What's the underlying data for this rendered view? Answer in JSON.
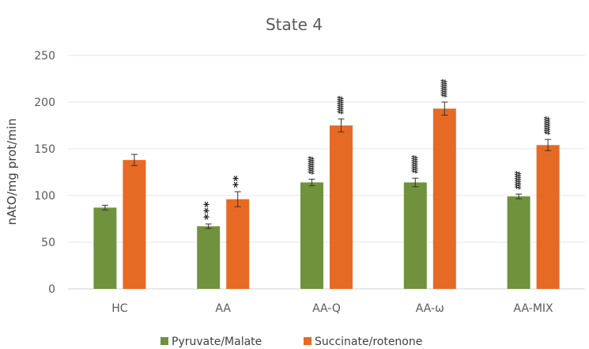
{
  "chart_data": {
    "type": "bar",
    "title": "State 4",
    "xlabel": "",
    "ylabel": "nAtO/mg prot/min",
    "ylim": [
      0,
      250
    ],
    "yticks": [
      "0",
      "50",
      "100",
      "150",
      "200",
      "250"
    ],
    "categories": [
      "HC",
      "AA",
      "AA-Q",
      "AA-ω",
      "AA-MIX"
    ],
    "grid": true,
    "legend": "bottom",
    "series": [
      {
        "name": "Pyruvate/Malate",
        "color": "#70923c",
        "values": [
          87,
          67,
          114,
          114,
          99
        ],
        "errors": [
          2.5,
          2.5,
          3.5,
          4.5,
          2.5
        ],
        "annotations": [
          "",
          "***",
          "####",
          "####",
          "####"
        ]
      },
      {
        "name": "Succinate/rotenone",
        "color": "#e76a24",
        "values": [
          138,
          96,
          175,
          193,
          154
        ],
        "errors": [
          6,
          8,
          7,
          7,
          6
        ],
        "annotations": [
          "",
          "**",
          "####",
          "####",
          "####"
        ]
      }
    ]
  }
}
